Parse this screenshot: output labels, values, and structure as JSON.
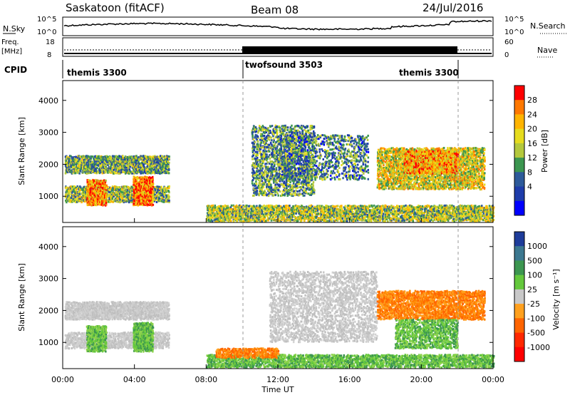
{
  "header": {
    "site": "Saskatoon (fitACF)",
    "beam": "Beam 08",
    "date": "24/Jul/2016"
  },
  "status_panel": {
    "left_label": "N.Sky",
    "left_ticks": [
      "10^5",
      "10^0"
    ],
    "right_ticks": [
      "10^5",
      "10^0"
    ],
    "right_label": "N.Search"
  },
  "freq_panel": {
    "left_label_1": "Freq.",
    "left_label_2": "[MHz]",
    "left_ticks": [
      "18",
      "8"
    ],
    "right_ticks": [
      "60",
      "0"
    ],
    "right_label": "Nave"
  },
  "cpid_panel": {
    "label": "CPID",
    "segments": [
      {
        "name": "themis 3300",
        "start_h": 0,
        "end_h": 10
      },
      {
        "name": "twofsound 3503",
        "start_h": 10,
        "end_h": 22
      },
      {
        "name": "themis 3300",
        "start_h": 22,
        "end_h": 24
      }
    ]
  },
  "chart_data": [
    {
      "type": "heatmap",
      "quantity": "power",
      "ylabel": "Slant Range [km]",
      "ylim": [
        180,
        4620
      ],
      "yticks": [
        1000,
        2000,
        3000,
        4000
      ],
      "xlim": [
        0,
        24
      ],
      "colorbar_label": "Power [dB]",
      "colorbar_ticks": [
        "28",
        "24",
        "20",
        "16",
        "12",
        "8",
        "4"
      ],
      "colorbar_colors": [
        "#ff0000",
        "#ff7800",
        "#ffb400",
        "#e6dc1e",
        "#b4c83c",
        "#3c9650",
        "#2d5a9a",
        "#1e3caa",
        "#0000ff"
      ],
      "scatter_regions": [
        {
          "t0": 0.1,
          "t1": 5.9,
          "r0": 1700,
          "r1": 2250,
          "density": 0.7,
          "level": 0.35
        },
        {
          "t0": 0.1,
          "t1": 5.9,
          "r0": 800,
          "r1": 1300,
          "density": 0.6,
          "level": 0.4
        },
        {
          "t0": 1.3,
          "t1": 2.4,
          "r0": 700,
          "r1": 1500,
          "density": 0.8,
          "level": 0.75
        },
        {
          "t0": 3.9,
          "t1": 5.0,
          "r0": 700,
          "r1": 1600,
          "density": 0.8,
          "level": 0.8
        },
        {
          "t0": 8.0,
          "t1": 24.0,
          "r0": 200,
          "r1": 700,
          "density": 0.55,
          "level": 0.45
        },
        {
          "t0": 10.5,
          "t1": 14.0,
          "r0": 1000,
          "r1": 3200,
          "density": 0.35,
          "level": 0.3
        },
        {
          "t0": 12.0,
          "t1": 17.0,
          "r0": 1500,
          "r1": 2900,
          "density": 0.25,
          "level": 0.25
        },
        {
          "t0": 17.5,
          "t1": 23.5,
          "r0": 1200,
          "r1": 2500,
          "density": 0.55,
          "level": 0.55
        },
        {
          "t0": 19.0,
          "t1": 22.0,
          "r0": 1700,
          "r1": 2400,
          "density": 0.6,
          "level": 0.7
        }
      ]
    },
    {
      "type": "heatmap",
      "quantity": "velocity",
      "ylabel": "Slant Range [km]",
      "ylim": [
        180,
        4620
      ],
      "yticks": [
        1000,
        2000,
        3000,
        4000
      ],
      "xlim": [
        0,
        24
      ],
      "xlabel": "Time UT",
      "xticks": [
        "00:00",
        "04:00",
        "08:00",
        "12:00",
        "16:00",
        "20:00",
        "00:00"
      ],
      "colorbar_label": "Velocity [m s⁻¹]",
      "colorbar_ticks": [
        "1000",
        "500",
        "100",
        "25",
        "-25",
        "-100",
        "-500",
        "-1000"
      ],
      "colorbar_colors": [
        "#1e3c9a",
        "#3c7890",
        "#3c9650",
        "#64c83c",
        "#c8c8c8",
        "#ffa01e",
        "#ff6400",
        "#ff2800",
        "#ff0000"
      ],
      "scatter_regions": [
        {
          "t0": 0.1,
          "t1": 5.9,
          "r0": 1700,
          "r1": 2250,
          "density": 0.75,
          "vel": "gray"
        },
        {
          "t0": 0.1,
          "t1": 5.9,
          "r0": 800,
          "r1": 1300,
          "density": 0.55,
          "vel": "gray"
        },
        {
          "t0": 1.3,
          "t1": 2.4,
          "r0": 700,
          "r1": 1500,
          "density": 0.7,
          "vel": "green"
        },
        {
          "t0": 3.9,
          "t1": 5.0,
          "r0": 700,
          "r1": 1600,
          "density": 0.7,
          "vel": "green"
        },
        {
          "t0": 8.0,
          "t1": 24.0,
          "r0": 200,
          "r1": 600,
          "density": 0.55,
          "vel": "green"
        },
        {
          "t0": 8.5,
          "t1": 12.0,
          "r0": 500,
          "r1": 800,
          "density": 0.5,
          "vel": "orange"
        },
        {
          "t0": 11.5,
          "t1": 17.5,
          "r0": 1000,
          "r1": 3200,
          "density": 0.3,
          "vel": "gray"
        },
        {
          "t0": 17.5,
          "t1": 23.5,
          "r0": 1700,
          "r1": 2600,
          "density": 0.55,
          "vel": "orange"
        },
        {
          "t0": 18.5,
          "t1": 22.0,
          "r0": 800,
          "r1": 1700,
          "density": 0.45,
          "vel": "green"
        }
      ]
    }
  ],
  "colors": {
    "power_hot": "#ff0000",
    "power_cold": "#0000ff",
    "velocity_toward": "#1e3c9a",
    "velocity_away": "#ff0000",
    "velocity_ground": "#c8c8c8"
  }
}
